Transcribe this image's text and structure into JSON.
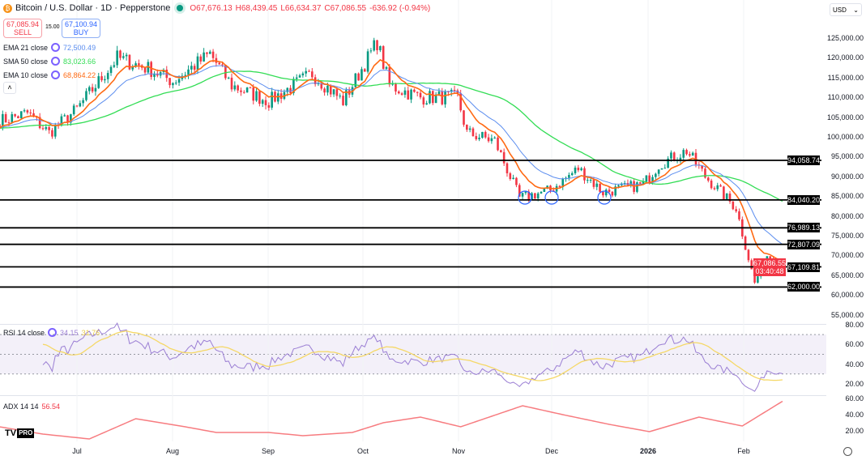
{
  "header": {
    "title": "Bitcoin / U.S. Dollar · 1D · Pepperstone",
    "open": "O67,676.13",
    "high": "H68,439.45",
    "low": "L66,634.37",
    "close": "C67,086.55",
    "change": "-636.92 (-0.94%)"
  },
  "trade": {
    "sell_price": "67,085.94",
    "sell_label": "SELL",
    "spread": "15.00",
    "buy_price": "67,100.94",
    "buy_label": "BUY"
  },
  "indicators": [
    {
      "label": "EMA 21 close",
      "value": "72,500.49",
      "color": "#5b8def"
    },
    {
      "label": "SMA 50 close",
      "value": "83,023.66",
      "color": "#33dd55"
    },
    {
      "label": "EMA 10 close",
      "value": "68,864.22",
      "color": "#ff6a13"
    }
  ],
  "rsi": {
    "label": "RSI 14 close",
    "value": "34.15",
    "ma_value": "31.76"
  },
  "adx": {
    "label": "ADX 14 14",
    "value": "56.54"
  },
  "currency": "USD",
  "price_axis": [
    "125,000.00",
    "120,000.00",
    "115,000.00",
    "110,000.00",
    "105,000.00",
    "100,000.00",
    "95,000.00",
    "90,000.00",
    "85,000.00",
    "80,000.00",
    "75,000.00",
    "70,000.00",
    "65,000.00",
    "60,000.00",
    "55,000.00"
  ],
  "rsi_axis": [
    "80.00",
    "60.00",
    "40.00",
    "20.00"
  ],
  "adx_axis": [
    "60.00",
    "40.00",
    "20.00"
  ],
  "levels": [
    {
      "price": 94058.74,
      "label": "94,058.74"
    },
    {
      "price": 84040.2,
      "label": "84,040.20"
    },
    {
      "price": 76989.13,
      "label": "76,989.13"
    },
    {
      "price": 72807.09,
      "label": "72,807.09"
    },
    {
      "price": 67109.81,
      "label": "67,109.81"
    },
    {
      "price": 62000,
      "label": "62,000.00"
    }
  ],
  "last_price": {
    "label": "67,086.55",
    "countdown": "03:40:48",
    "color": "#f23645"
  },
  "months": [
    "Jul",
    "Aug",
    "Sep",
    "Oct",
    "Nov",
    "Dec",
    "2026",
    "Feb"
  ],
  "colors": {
    "up": "#089981",
    "down": "#f23645",
    "rsi": "#9b7fd4",
    "rsi_ma": "#f5d867",
    "adx": "#f77c80"
  },
  "chart_data": {
    "type": "candlestick",
    "interval": "1D",
    "ylim": [
      55000,
      127000
    ],
    "close_keyframes": [
      [
        "2025-06-06",
        104000
      ],
      [
        "2025-06-15",
        106000
      ],
      [
        "2025-06-22",
        101000
      ],
      [
        "2025-07-01",
        107000
      ],
      [
        "2025-07-10",
        116000
      ],
      [
        "2025-07-14",
        120000
      ],
      [
        "2025-07-25",
        117000
      ],
      [
        "2025-08-01",
        114000
      ],
      [
        "2025-08-13",
        121000
      ],
      [
        "2025-08-20",
        113000
      ],
      [
        "2025-09-01",
        109000
      ],
      [
        "2025-09-15",
        116000
      ],
      [
        "2025-09-25",
        109000
      ],
      [
        "2025-10-06",
        124000
      ],
      [
        "2025-10-10",
        113000
      ],
      [
        "2025-10-20",
        110000
      ],
      [
        "2025-11-01",
        110000
      ],
      [
        "2025-11-04",
        101000
      ],
      [
        "2025-11-13",
        99000
      ],
      [
        "2025-11-21",
        84500
      ],
      [
        "2025-12-01",
        86500
      ],
      [
        "2025-12-10",
        92000
      ],
      [
        "2025-12-18",
        86000
      ],
      [
        "2025-12-31",
        88000
      ],
      [
        "2026-01-05",
        93000
      ],
      [
        "2026-01-14",
        96500
      ],
      [
        "2026-01-20",
        90000
      ],
      [
        "2026-01-30",
        82000
      ],
      [
        "2026-02-05",
        63000
      ],
      [
        "2026-02-09",
        70000
      ],
      [
        "2026-02-14",
        67086.55
      ]
    ],
    "adx_keyframes": [
      [
        "2025-06-06",
        25
      ],
      [
        "2025-06-20",
        16
      ],
      [
        "2025-07-05",
        10
      ],
      [
        "2025-07-20",
        35
      ],
      [
        "2025-08-05",
        25
      ],
      [
        "2025-08-15",
        18
      ],
      [
        "2025-09-01",
        18
      ],
      [
        "2025-09-12",
        14
      ],
      [
        "2025-09-28",
        18
      ],
      [
        "2025-10-08",
        30
      ],
      [
        "2025-10-20",
        37
      ],
      [
        "2025-11-02",
        25
      ],
      [
        "2025-11-22",
        51
      ],
      [
        "2025-12-05",
        40
      ],
      [
        "2025-12-20",
        28
      ],
      [
        "2026-01-02",
        19
      ],
      [
        "2026-01-18",
        37
      ],
      [
        "2026-02-01",
        26
      ],
      [
        "2026-02-14",
        56.54
      ]
    ]
  }
}
